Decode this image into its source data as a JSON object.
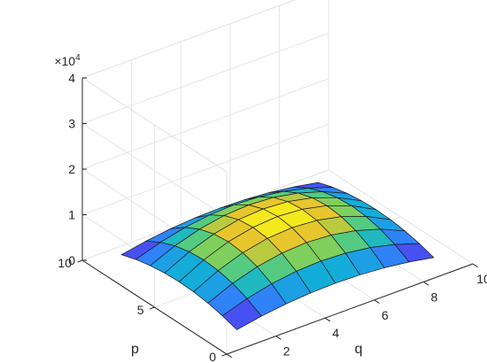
{
  "chart_data": {
    "type": "surface",
    "title": "",
    "xlabel": "q",
    "ylabel": "p",
    "zlabel": "",
    "exponent_label": "×10",
    "exponent_power": "4",
    "x_ticks": [
      "0",
      "2",
      "4",
      "6",
      "8",
      "10"
    ],
    "y_ticks": [
      "0",
      "5",
      "10"
    ],
    "z_ticks": [
      "0",
      "1",
      "2",
      "3",
      "4"
    ],
    "x_range": [
      0,
      10
    ],
    "y_range": [
      0,
      10
    ],
    "z_range": [
      0,
      40000
    ],
    "grid": true,
    "colormap": "parula",
    "surface_formula": "z = q*(10-q)*p*(10-p)*16 (sampled at integer q=1..9, p=1..9)",
    "x_samples": [
      1,
      2,
      3,
      4,
      5,
      6,
      7,
      8,
      9
    ],
    "y_samples": [
      1,
      2,
      3,
      4,
      5,
      6,
      7,
      8,
      9
    ]
  },
  "colors": {
    "grid": "#e6e6e6",
    "axis": "#262626",
    "edge": "#1a1a1a"
  }
}
